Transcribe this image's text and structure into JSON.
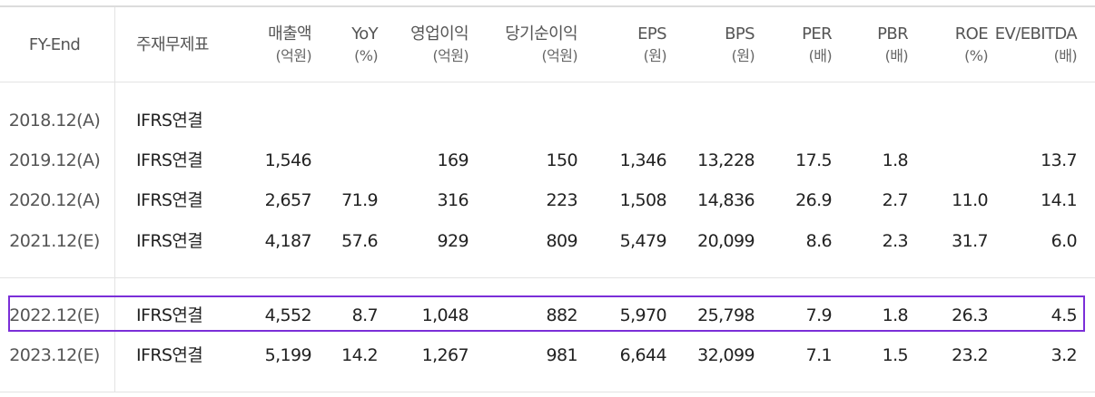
{
  "header": {
    "fy_end": "FY-End",
    "standard": "주재무제표",
    "columns": [
      {
        "key": "rev",
        "label": "매출액",
        "unit": "(억원)"
      },
      {
        "key": "yoy",
        "label": "YoY",
        "unit": "(%)"
      },
      {
        "key": "op",
        "label": "영업이익",
        "unit": "(억원)"
      },
      {
        "key": "net",
        "label": "당기순이익",
        "unit": "(억원)"
      },
      {
        "key": "eps",
        "label": "EPS",
        "unit": "(원)"
      },
      {
        "key": "bps",
        "label": "BPS",
        "unit": "(원)"
      },
      {
        "key": "per",
        "label": "PER",
        "unit": "(배)"
      },
      {
        "key": "pbr",
        "label": "PBR",
        "unit": "(배)"
      },
      {
        "key": "roe",
        "label": "ROE",
        "unit": "(%)"
      },
      {
        "key": "ev",
        "label": "EV/EBITDA",
        "unit": "(배)"
      }
    ]
  },
  "rows": [
    {
      "year": "2018.12(A)",
      "standard": "IFRS연결",
      "rev": "",
      "yoy": "",
      "op": "",
      "net": "",
      "eps": "",
      "bps": "",
      "per": "",
      "pbr": "",
      "roe": "",
      "ev": ""
    },
    {
      "year": "2019.12(A)",
      "standard": "IFRS연결",
      "rev": "1,546",
      "yoy": "",
      "op": "169",
      "net": "150",
      "eps": "1,346",
      "bps": "13,228",
      "per": "17.5",
      "pbr": "1.8",
      "roe": "",
      "ev": "13.7"
    },
    {
      "year": "2020.12(A)",
      "standard": "IFRS연결",
      "rev": "2,657",
      "yoy": "71.9",
      "op": "316",
      "net": "223",
      "eps": "1,508",
      "bps": "14,836",
      "per": "26.9",
      "pbr": "2.7",
      "roe": "11.0",
      "ev": "14.1"
    },
    {
      "year": "2021.12(E)",
      "standard": "IFRS연결",
      "rev": "4,187",
      "yoy": "57.6",
      "op": "929",
      "net": "809",
      "eps": "5,479",
      "bps": "20,099",
      "per": "8.6",
      "pbr": "2.3",
      "roe": "31.7",
      "ev": "6.0"
    },
    {
      "year": "2022.12(E)",
      "standard": "IFRS연결",
      "rev": "4,552",
      "yoy": "8.7",
      "op": "1,048",
      "net": "882",
      "eps": "5,970",
      "bps": "25,798",
      "per": "7.9",
      "pbr": "1.8",
      "roe": "26.3",
      "ev": "4.5"
    },
    {
      "year": "2023.12(E)",
      "standard": "IFRS연결",
      "rev": "5,199",
      "yoy": "14.2",
      "op": "1,267",
      "net": "981",
      "eps": "6,644",
      "bps": "32,099",
      "per": "7.1",
      "pbr": "1.5",
      "roe": "23.2",
      "ev": "3.2"
    }
  ],
  "highlight_color": "#7b2fd8"
}
